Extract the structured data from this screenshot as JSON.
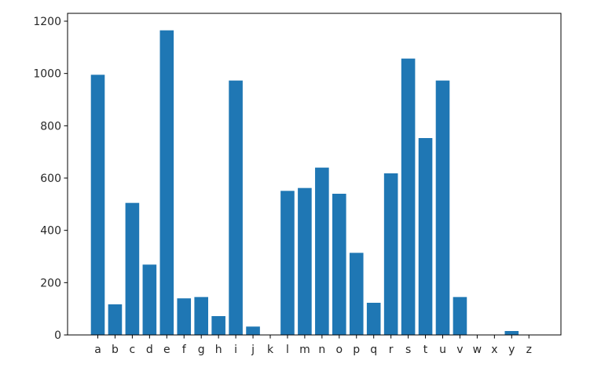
{
  "chart_data": {
    "type": "bar",
    "title": "",
    "xlabel": "",
    "ylabel": "",
    "categories": [
      "a",
      "b",
      "c",
      "d",
      "e",
      "f",
      "g",
      "h",
      "i",
      "j",
      "k",
      "l",
      "m",
      "n",
      "o",
      "p",
      "q",
      "r",
      "s",
      "t",
      "u",
      "v",
      "w",
      "x",
      "y",
      "z"
    ],
    "values": [
      995,
      117,
      505,
      269,
      1165,
      140,
      145,
      72,
      973,
      32,
      0,
      551,
      562,
      640,
      540,
      314,
      123,
      618,
      1057,
      753,
      973,
      145,
      0,
      0,
      15,
      0
    ],
    "ylim": [
      0,
      1230
    ],
    "yticks": [
      0,
      200,
      400,
      600,
      800,
      1000,
      1200
    ],
    "bar_color": "#1f77b4",
    "grid": false,
    "legend": "none"
  }
}
